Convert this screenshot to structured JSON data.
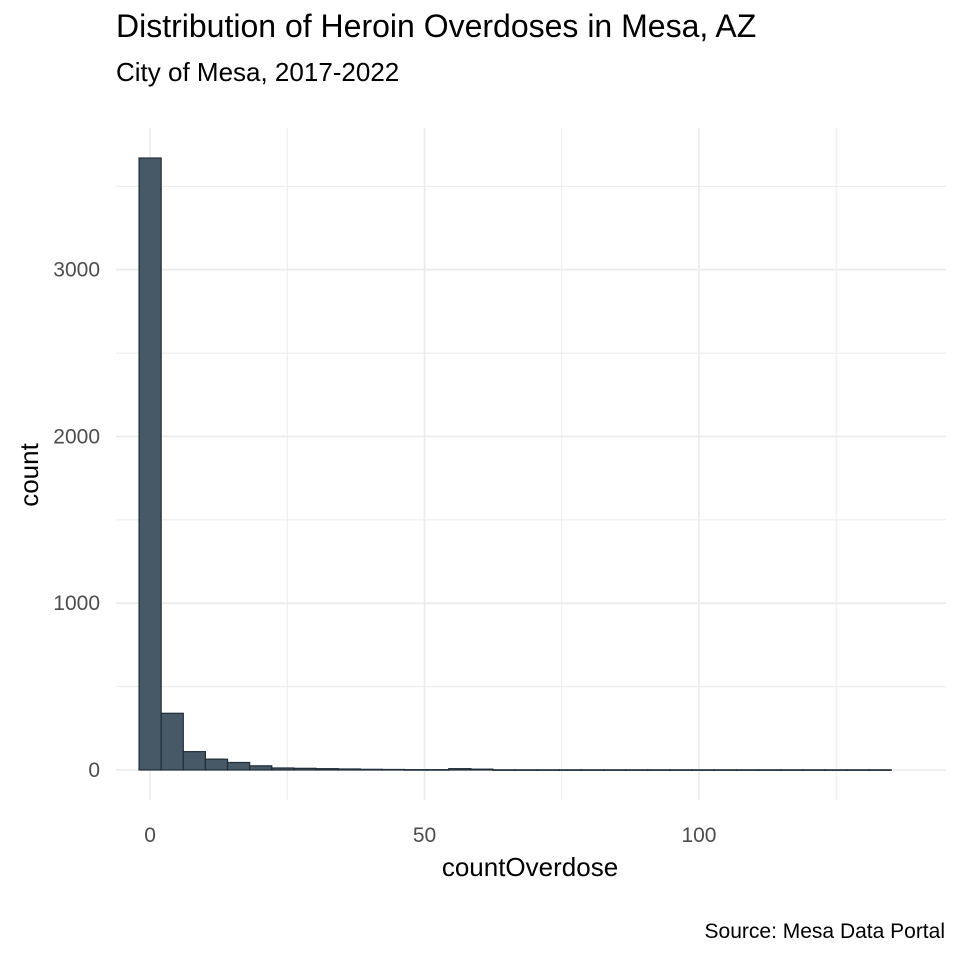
{
  "chart_data": {
    "type": "bar",
    "title": "Distribution of Heroin Overdoses in Mesa, AZ",
    "subtitle": "City of Mesa, 2017-2022",
    "caption": "Source: Mesa Data Portal",
    "xlabel": "countOverdose",
    "ylabel": "count",
    "bin_width": 4.03,
    "bin_start": -2.0,
    "values": [
      3670,
      340,
      110,
      65,
      45,
      25,
      12,
      10,
      8,
      6,
      4,
      3,
      2,
      2,
      8,
      5,
      1,
      1,
      1,
      1,
      1,
      1,
      1,
      1,
      1,
      1,
      1,
      1,
      1,
      1,
      1,
      1,
      1,
      1
    ],
    "xlim": [
      -6.2,
      145
    ],
    "ylim": [
      -180,
      3850
    ],
    "x_ticks": [
      0,
      50,
      100
    ],
    "x_tick_labels": [
      "0",
      "50",
      "100"
    ],
    "y_ticks": [
      0,
      1000,
      2000,
      3000
    ],
    "y_tick_labels": [
      "0",
      "1000",
      "2000",
      "3000"
    ],
    "grid": true,
    "bar_fill": "#475967",
    "bar_outline": "#1f2d3a",
    "grid_color": "#ebebeb"
  }
}
